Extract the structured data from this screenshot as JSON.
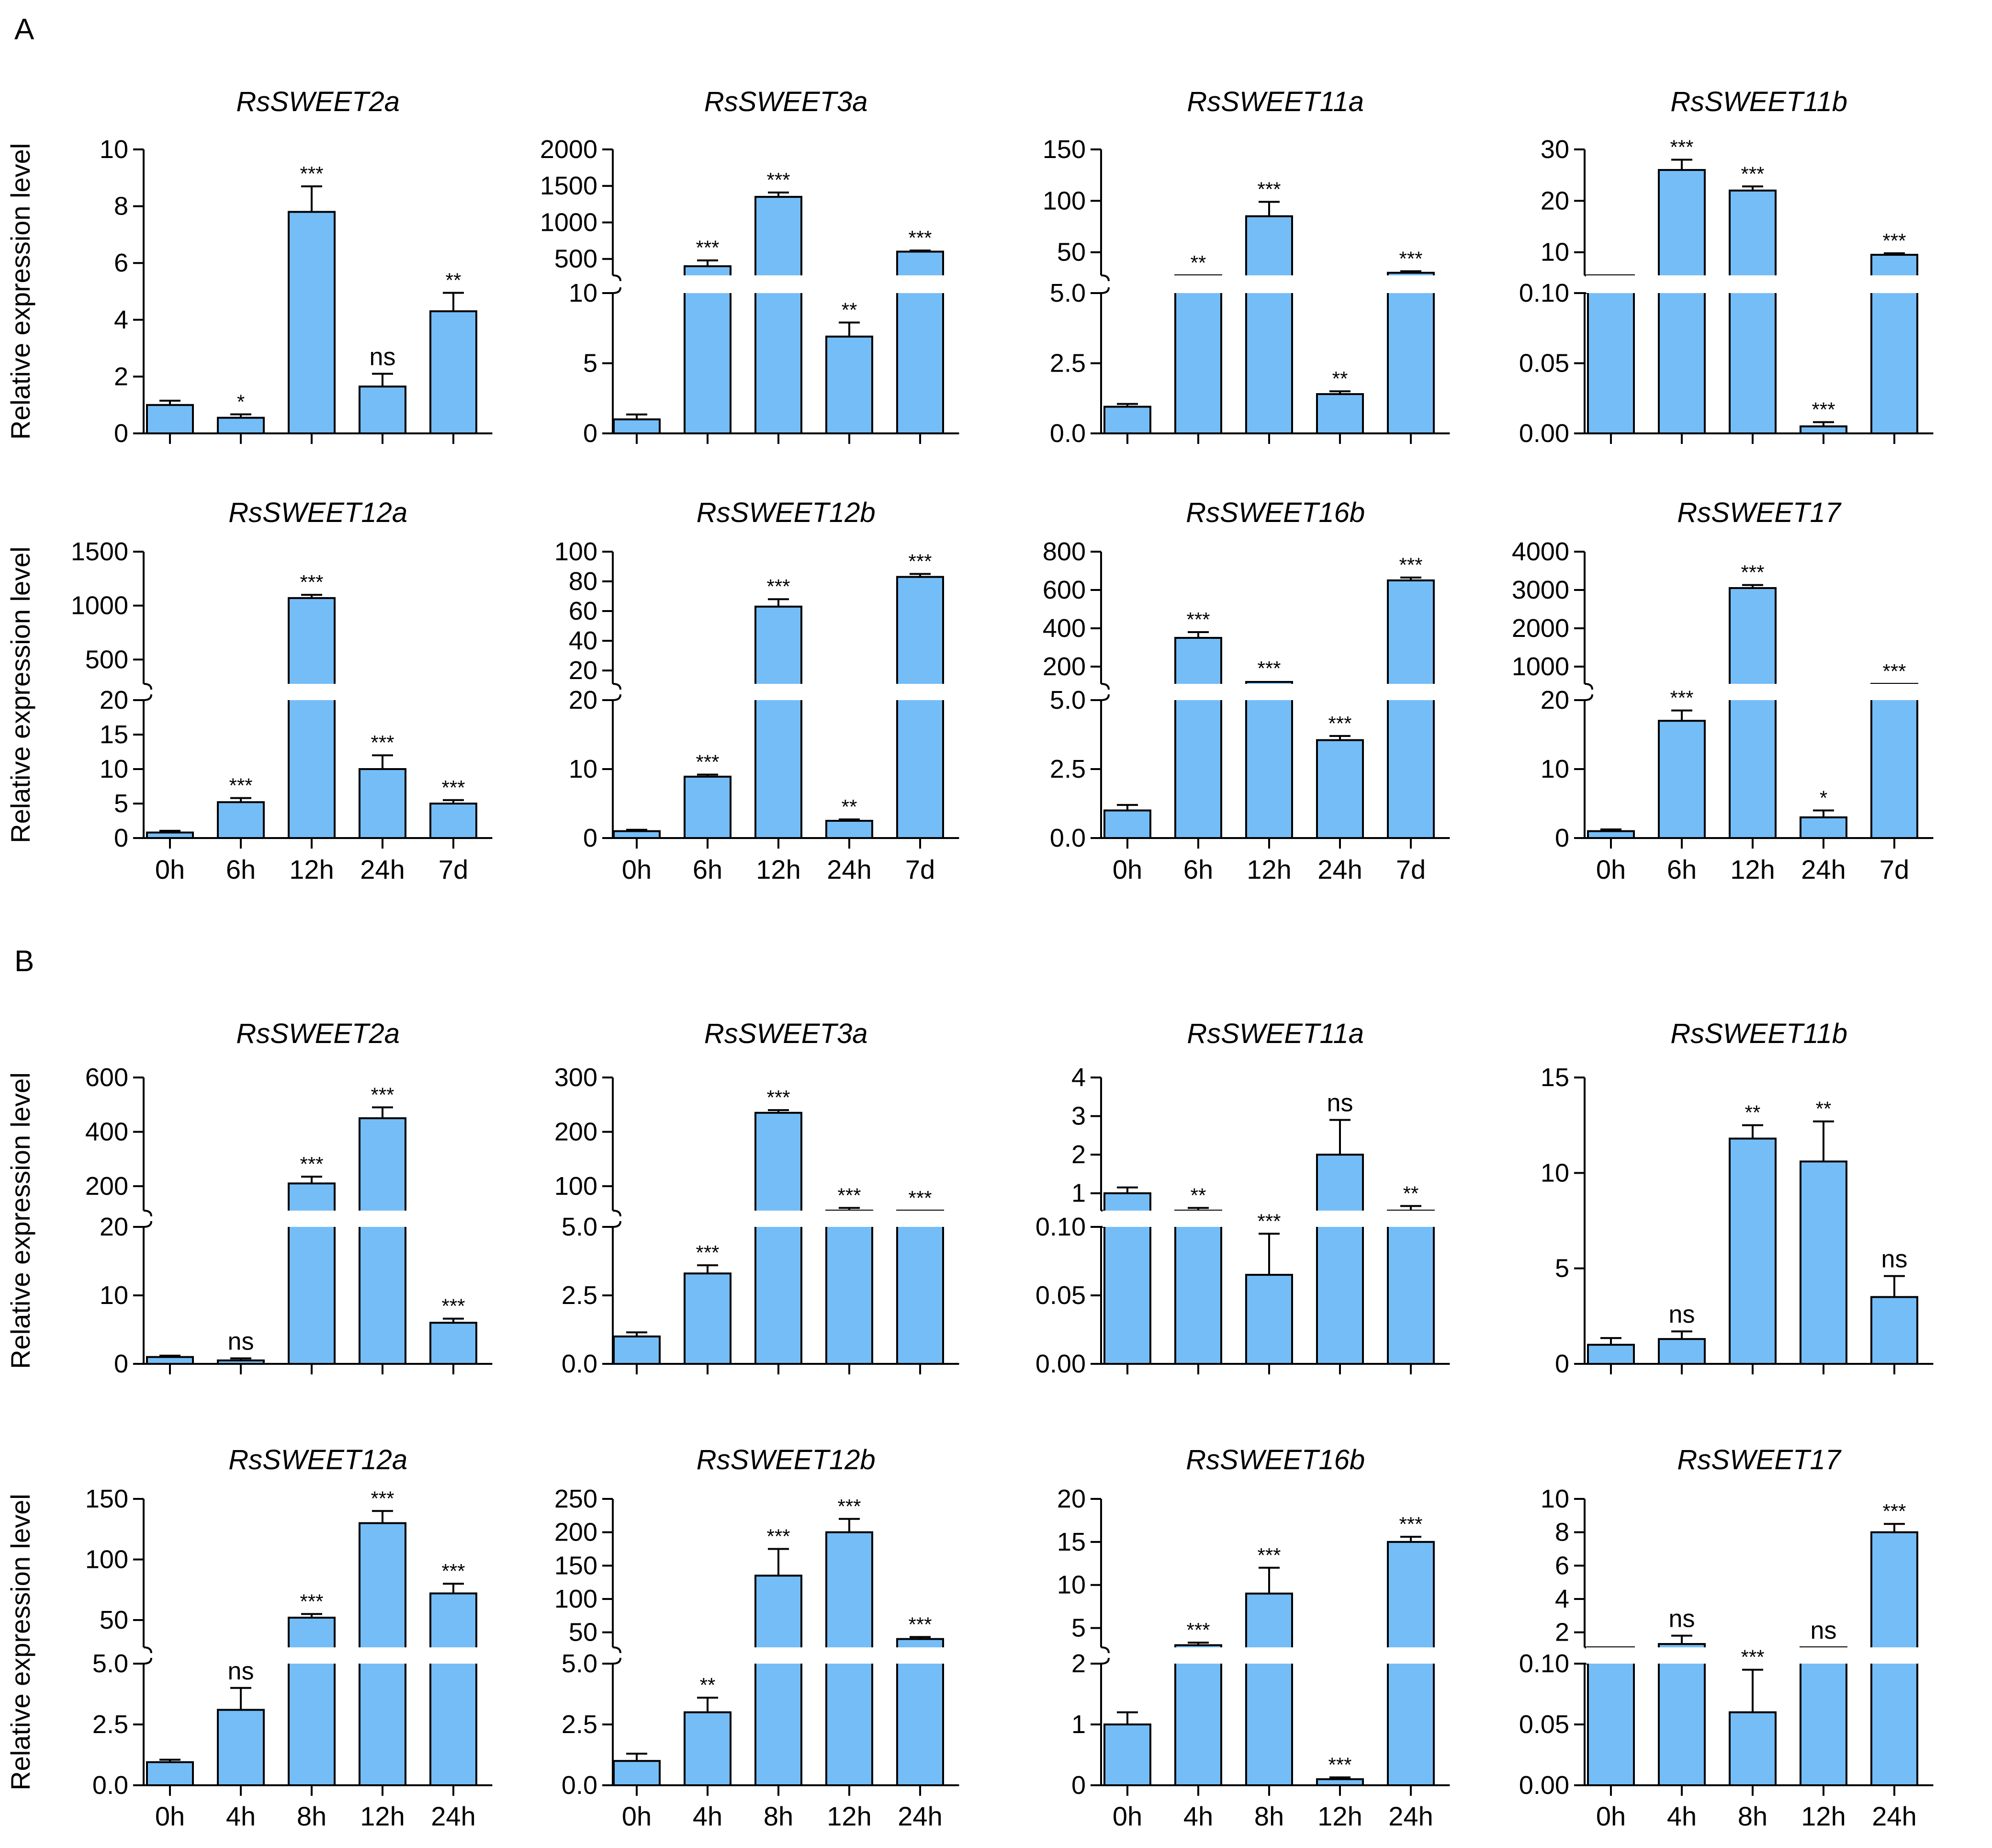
{
  "colors": {
    "bar": "#75bdf7",
    "stroke": "#000000"
  },
  "panel_labels": [
    "A",
    "B"
  ],
  "chart_data": [
    {
      "type": "bar",
      "panel": "A",
      "title": "RsSWEET2a",
      "ylabel": "Relative expression level",
      "categories": [
        "",
        "",
        "",
        "",
        ""
      ],
      "values": [
        1.0,
        0.55,
        7.8,
        1.65,
        4.3
      ],
      "errors": [
        0.15,
        0.12,
        0.9,
        0.45,
        0.65
      ],
      "significance": [
        "",
        "*",
        "***",
        "ns",
        "**"
      ],
      "axis": {
        "kind": "single",
        "lo": [
          0,
          10
        ],
        "lo_ticks": [
          "0",
          "2",
          "4",
          "6",
          "8",
          "10"
        ]
      }
    },
    {
      "type": "bar",
      "panel": "A",
      "title": "RsSWEET3a",
      "ylabel": "",
      "categories": [
        "",
        "",
        "",
        "",
        ""
      ],
      "values": [
        1.0,
        400,
        1350,
        6.9,
        600
      ],
      "errors": [
        0.35,
        80,
        60,
        1.0,
        15
      ],
      "significance": [
        "",
        "***",
        "***",
        "**",
        "***"
      ],
      "axis": {
        "kind": "broken",
        "lo": [
          0,
          10
        ],
        "hi": [
          0,
          2000
        ],
        "lo_ticks": [
          "0",
          "5",
          "10"
        ],
        "hi_ticks": [
          "500",
          "1000",
          "1500",
          "2000"
        ]
      }
    },
    {
      "type": "bar",
      "panel": "A",
      "title": "RsSWEET11a",
      "ylabel": "",
      "categories": [
        "",
        "",
        "",
        "",
        ""
      ],
      "values": [
        0.95,
        20,
        85,
        1.4,
        30
      ],
      "errors": [
        0.1,
        4,
        14,
        0.1,
        1.5
      ],
      "significance": [
        "",
        "**",
        "***",
        "**",
        "***"
      ],
      "axis": {
        "kind": "broken",
        "lo": [
          0,
          5
        ],
        "hi": [
          0,
          150
        ],
        "lo_ticks": [
          "0.0",
          "2.5",
          "5.0"
        ],
        "hi_ticks": [
          "50",
          "100",
          "150"
        ]
      }
    },
    {
      "type": "bar",
      "panel": "A",
      "title": "RsSWEET11b",
      "ylabel": "",
      "categories": [
        "",
        "",
        "",
        "",
        ""
      ],
      "values": [
        1.0,
        26,
        22,
        0.005,
        9.5
      ],
      "errors": [
        0.1,
        2,
        0.8,
        0.003,
        0.3
      ],
      "significance": [
        "",
        "***",
        "***",
        "***",
        "***"
      ],
      "axis": {
        "kind": "broken",
        "lo": [
          0,
          0.1
        ],
        "hi": [
          0,
          30
        ],
        "lo_ticks": [
          "0.00",
          "0.05",
          "0.10"
        ],
        "hi_ticks": [
          "10",
          "20",
          "30"
        ]
      }
    },
    {
      "type": "bar",
      "panel": "A",
      "title": "RsSWEET12a",
      "ylabel": "Relative expression level",
      "categories": [
        "0h",
        "6h",
        "12h",
        "24h",
        "7d"
      ],
      "values": [
        0.8,
        5.2,
        1070,
        10,
        5
      ],
      "errors": [
        0.25,
        0.6,
        30,
        2,
        0.5
      ],
      "significance": [
        "",
        "***",
        "***",
        "***",
        "***"
      ],
      "axis": {
        "kind": "broken",
        "lo": [
          0,
          20
        ],
        "hi": [
          0,
          1500
        ],
        "lo_ticks": [
          "0",
          "5",
          "10",
          "15",
          "20"
        ],
        "hi_ticks": [
          "500",
          "1000",
          "1500"
        ]
      }
    },
    {
      "type": "bar",
      "panel": "A",
      "title": "RsSWEET12b",
      "ylabel": "",
      "categories": [
        "0h",
        "6h",
        "12h",
        "24h",
        "7d"
      ],
      "values": [
        1.0,
        8.9,
        63,
        2.5,
        83
      ],
      "errors": [
        0.2,
        0.3,
        5,
        0.2,
        2
      ],
      "significance": [
        "",
        "***",
        "***",
        "**",
        "***"
      ],
      "axis": {
        "kind": "broken",
        "lo": [
          0,
          20
        ],
        "hi": [
          20,
          100
        ],
        "lo_ticks": [
          "0",
          "10",
          "20"
        ],
        "hi_ticks": [
          "20",
          "40",
          "60",
          "80",
          "100"
        ]
      }
    },
    {
      "type": "bar",
      "panel": "A",
      "title": "RsSWEET16b",
      "ylabel": "",
      "categories": [
        "0h",
        "6h",
        "12h",
        "24h",
        "7d"
      ],
      "values": [
        1.0,
        350,
        120,
        3.55,
        650
      ],
      "errors": [
        0.2,
        30,
        5,
        0.15,
        15
      ],
      "significance": [
        "",
        "***",
        "***",
        "***",
        "***"
      ],
      "axis": {
        "kind": "broken",
        "lo": [
          0,
          5
        ],
        "hi": [
          0,
          800
        ],
        "lo_ticks": [
          "0.0",
          "2.5",
          "5.0"
        ],
        "hi_ticks": [
          "200",
          "400",
          "600",
          "800"
        ]
      }
    },
    {
      "type": "bar",
      "panel": "A",
      "title": "RsSWEET17",
      "ylabel": "",
      "categories": [
        "0h",
        "6h",
        "12h",
        "24h",
        "7d"
      ],
      "values": [
        1.0,
        17,
        3050,
        3,
        250
      ],
      "errors": [
        0.25,
        1.5,
        80,
        1,
        20
      ],
      "significance": [
        "",
        "***",
        "***",
        "*",
        "***"
      ],
      "axis": {
        "kind": "broken",
        "lo": [
          0,
          20
        ],
        "hi": [
          0,
          4000
        ],
        "lo_ticks": [
          "0",
          "10",
          "20"
        ],
        "hi_ticks": [
          "1000",
          "2000",
          "3000",
          "4000"
        ]
      }
    },
    {
      "type": "bar",
      "panel": "B",
      "title": "RsSWEET2a",
      "ylabel": "Relative expression level",
      "categories": [
        "",
        "",
        "",
        "",
        ""
      ],
      "values": [
        1.0,
        0.5,
        210,
        450,
        6
      ],
      "errors": [
        0.2,
        0.3,
        25,
        40,
        0.6
      ],
      "significance": [
        "",
        "ns",
        "***",
        "***",
        "***"
      ],
      "axis": {
        "kind": "broken",
        "lo": [
          0,
          20
        ],
        "hi": [
          0,
          600
        ],
        "lo_ticks": [
          "0",
          "10",
          "20"
        ],
        "hi_ticks": [
          "200",
          "400",
          "600"
        ]
      }
    },
    {
      "type": "bar",
      "panel": "B",
      "title": "RsSWEET3a",
      "ylabel": "",
      "categories": [
        "",
        "",
        "",
        "",
        ""
      ],
      "values": [
        1.0,
        3.3,
        235,
        55,
        43
      ],
      "errors": [
        0.15,
        0.3,
        5,
        5,
        2
      ],
      "significance": [
        "",
        "***",
        "***",
        "***",
        "***"
      ],
      "axis": {
        "kind": "broken",
        "lo": [
          0,
          5
        ],
        "hi": [
          0,
          300
        ],
        "lo_ticks": [
          "0.0",
          "2.5",
          "5.0"
        ],
        "hi_ticks": [
          "100",
          "200",
          "300"
        ]
      }
    },
    {
      "type": "bar",
      "panel": "B",
      "title": "RsSWEET11a",
      "ylabel": "",
      "categories": [
        "",
        "",
        "",
        "",
        ""
      ],
      "values": [
        1.0,
        0.5,
        0.065,
        2.0,
        0.55
      ],
      "errors": [
        0.15,
        0.12,
        0.03,
        0.9,
        0.12
      ],
      "significance": [
        "",
        "**",
        "***",
        "ns",
        "**"
      ],
      "axis": {
        "kind": "broken",
        "lo": [
          0,
          0.1
        ],
        "hi": [
          0,
          4
        ],
        "lo_ticks": [
          "0.00",
          "0.05",
          "0.10"
        ],
        "hi_ticks": [
          "1",
          "2",
          "3",
          "4"
        ]
      }
    },
    {
      "type": "bar",
      "panel": "B",
      "title": "RsSWEET11b",
      "ylabel": "",
      "categories": [
        "",
        "",
        "",
        "",
        ""
      ],
      "values": [
        1.0,
        1.3,
        11.8,
        10.6,
        3.5
      ],
      "errors": [
        0.35,
        0.4,
        0.7,
        2.1,
        1.1
      ],
      "significance": [
        "",
        "ns",
        "**",
        "**",
        "ns"
      ],
      "axis": {
        "kind": "single",
        "lo": [
          0,
          15
        ],
        "lo_ticks": [
          "0",
          "5",
          "10",
          "15"
        ]
      }
    },
    {
      "type": "bar",
      "panel": "B",
      "title": "RsSWEET12a",
      "ylabel": "Relative expression level",
      "categories": [
        "0h",
        "4h",
        "8h",
        "12h",
        "24h"
      ],
      "values": [
        0.95,
        3.1,
        52,
        130,
        72
      ],
      "errors": [
        0.1,
        0.9,
        3,
        10,
        8
      ],
      "significance": [
        "",
        "ns",
        "***",
        "***",
        "***"
      ],
      "axis": {
        "kind": "broken",
        "lo": [
          0,
          5
        ],
        "hi": [
          0,
          150
        ],
        "lo_ticks": [
          "0.0",
          "2.5",
          "5.0"
        ],
        "hi_ticks": [
          "50",
          "100",
          "150"
        ]
      }
    },
    {
      "type": "bar",
      "panel": "B",
      "title": "RsSWEET12b",
      "ylabel": "",
      "categories": [
        "0h",
        "4h",
        "8h",
        "12h",
        "24h"
      ],
      "values": [
        1.0,
        3.0,
        135,
        200,
        40
      ],
      "errors": [
        0.3,
        0.6,
        40,
        20,
        3
      ],
      "significance": [
        "",
        "**",
        "***",
        "***",
        "***"
      ],
      "axis": {
        "kind": "broken",
        "lo": [
          0,
          5
        ],
        "hi": [
          0,
          250
        ],
        "lo_ticks": [
          "0.0",
          "2.5",
          "5.0"
        ],
        "hi_ticks": [
          "50",
          "100",
          "150",
          "200",
          "250"
        ]
      }
    },
    {
      "type": "bar",
      "panel": "B",
      "title": "RsSWEET16b",
      "ylabel": "",
      "categories": [
        "0h",
        "4h",
        "8h",
        "12h",
        "24h"
      ],
      "values": [
        1.0,
        3.0,
        9,
        0.1,
        15
      ],
      "errors": [
        0.2,
        0.3,
        3,
        0.03,
        0.6
      ],
      "significance": [
        "",
        "***",
        "***",
        "***",
        "***"
      ],
      "axis": {
        "kind": "broken",
        "lo": [
          0,
          2
        ],
        "hi": [
          0,
          20
        ],
        "lo_ticks": [
          "0",
          "1",
          "2"
        ],
        "hi_ticks": [
          "5",
          "10",
          "15",
          "20"
        ]
      }
    },
    {
      "type": "bar",
      "panel": "B",
      "title": "RsSWEET17",
      "ylabel": "",
      "categories": [
        "0h",
        "4h",
        "8h",
        "12h",
        "24h"
      ],
      "values": [
        1.0,
        1.3,
        0.06,
        0.8,
        8.0
      ],
      "errors": [
        0.15,
        0.5,
        0.035,
        0.2,
        0.5
      ],
      "significance": [
        "",
        "ns",
        "***",
        "ns",
        "***"
      ],
      "axis": {
        "kind": "broken",
        "lo": [
          0,
          0.1
        ],
        "hi": [
          0,
          10
        ],
        "lo_ticks": [
          "0.00",
          "0.05",
          "0.10"
        ],
        "hi_ticks": [
          "2",
          "4",
          "6",
          "8",
          "10"
        ]
      }
    }
  ]
}
